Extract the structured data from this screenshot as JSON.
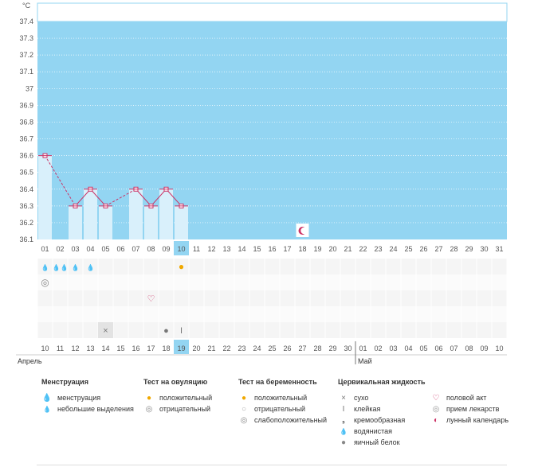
{
  "chart_data": {
    "type": "line",
    "title": "",
    "ylabel": "°C",
    "xlabel": "",
    "ylim": [
      36.1,
      37.4
    ],
    "yticks": [
      "37.4",
      "37.3",
      "37.2",
      "37.1",
      "37",
      "36.9",
      "36.8",
      "36.7",
      "36.6",
      "36.5",
      "36.4",
      "36.3",
      "36.2",
      "36.1"
    ],
    "cycle_days": [
      "01",
      "02",
      "03",
      "04",
      "05",
      "06",
      "07",
      "08",
      "09",
      "10",
      "11",
      "12",
      "13",
      "14",
      "15",
      "16",
      "17",
      "18",
      "19",
      "20",
      "21",
      "22",
      "23",
      "24",
      "25",
      "26",
      "27",
      "28",
      "29",
      "30",
      "31"
    ],
    "highlight_cycle_day": "10",
    "temperatures": [
      36.6,
      null,
      36.3,
      36.4,
      36.3,
      null,
      36.4,
      36.3,
      36.4,
      36.3,
      null,
      null,
      null,
      null,
      null,
      null,
      null,
      null,
      null,
      null,
      null,
      null,
      null,
      null,
      null,
      null,
      null,
      null,
      null,
      null,
      null
    ],
    "colors": {
      "chart_bg": "#93d5f2",
      "bar": "#d9f0fb",
      "line": "#cc3366",
      "weekend": "#cc3366",
      "highlight": "#93d5f2"
    }
  },
  "markers": {
    "moon_day_index": 17,
    "menstruation": [
      {
        "day_index": 0,
        "symbol": "💧",
        "type": "небольшие выделения"
      },
      {
        "day_index": 1,
        "symbol": "💧💧",
        "type": "менструация"
      },
      {
        "day_index": 2,
        "symbol": "💧",
        "type": "небольшие выделения"
      },
      {
        "day_index": 3,
        "symbol": "💧",
        "type": "небольшие выделения"
      }
    ],
    "ovulation_test": [
      {
        "day_index": 9,
        "symbol": "●",
        "result": "положительный"
      }
    ],
    "pregnancy_test": [
      {
        "day_index": 0,
        "symbol": "◎",
        "result": "слабоположительный"
      }
    ],
    "intercourse": [
      {
        "day_index": 7,
        "symbol": "♡"
      }
    ],
    "cervical": [
      {
        "day_index": 4,
        "symbol": "×",
        "type": "сухо"
      },
      {
        "day_index": 8,
        "symbol": "●",
        "type": "яичный белок"
      },
      {
        "day_index": 9,
        "symbol": "I",
        "type": "клейкая"
      }
    ]
  },
  "dates": {
    "labels": [
      "10",
      "11",
      "12",
      "13",
      "14",
      "15",
      "16",
      "17",
      "18",
      "19",
      "20",
      "21",
      "22",
      "23",
      "24",
      "25",
      "26",
      "27",
      "28",
      "29",
      "30",
      "01",
      "02",
      "03",
      "04",
      "05",
      "06",
      "07",
      "08",
      "09",
      "10"
    ],
    "weekend": [
      false,
      false,
      false,
      false,
      true,
      true,
      false,
      false,
      false,
      false,
      false,
      true,
      true,
      false,
      false,
      false,
      false,
      false,
      true,
      true,
      false,
      false,
      false,
      false,
      false,
      true,
      true,
      false,
      false,
      false,
      false
    ],
    "today_index": 9,
    "month_april": "Апрель",
    "month_may": "Май",
    "may_start_index": 21
  },
  "legend": {
    "menstruation": {
      "title": "Менструация",
      "items": [
        {
          "icon": "💧",
          "label": "менструация"
        },
        {
          "icon": "💧",
          "label": "небольшие выделения"
        }
      ]
    },
    "ovulation": {
      "title": "Тест на овуляцию",
      "items": [
        {
          "icon": "●",
          "label": "положительный"
        },
        {
          "icon": "◎",
          "label": "отрицательный"
        }
      ]
    },
    "pregnancy": {
      "title": "Тест на беременность",
      "items": [
        {
          "icon": "●",
          "label": "положительный"
        },
        {
          "icon": "○",
          "label": "отрицательный"
        },
        {
          "icon": "◎",
          "label": "слабоположительный"
        }
      ]
    },
    "cervical": {
      "title": "Цервикальная жидкость",
      "items": [
        {
          "icon": "×",
          "label": "сухо"
        },
        {
          "icon": "I",
          "label": "клейкая"
        },
        {
          "icon": "❟",
          "label": "кремообразная"
        },
        {
          "icon": "💧",
          "label": "водянистая"
        },
        {
          "icon": "●",
          "label": "яичный белок"
        }
      ]
    },
    "other": {
      "items": [
        {
          "icon": "♡",
          "label": "половой акт"
        },
        {
          "icon": "◎",
          "label": "прием лекарств"
        },
        {
          "icon": "◐",
          "label": "лунный календарь"
        }
      ]
    }
  }
}
